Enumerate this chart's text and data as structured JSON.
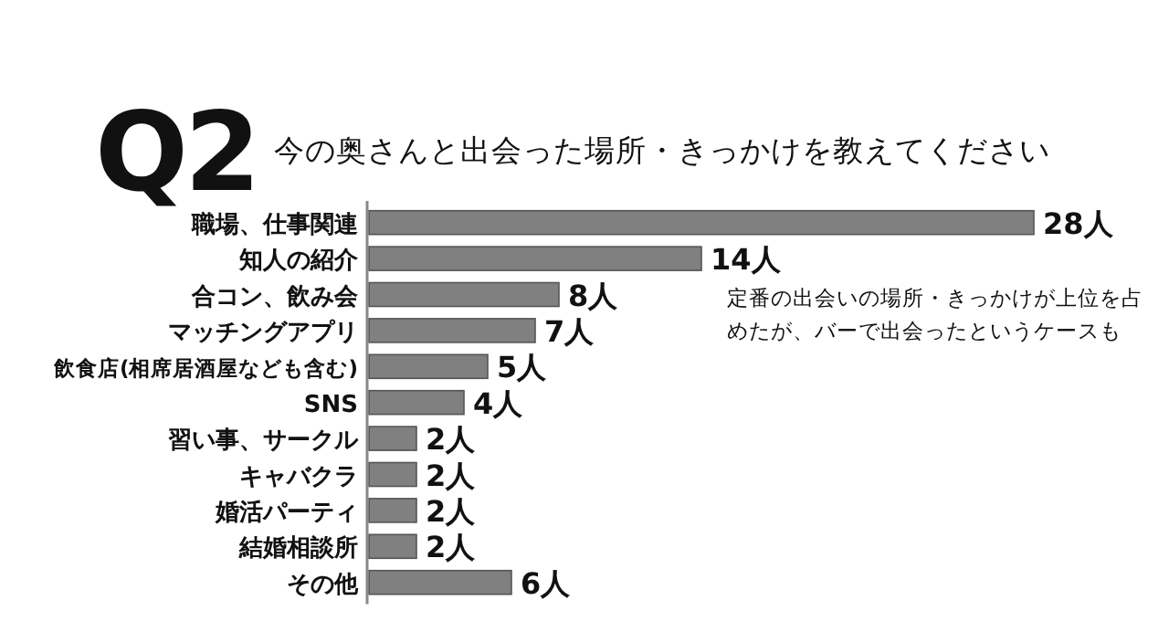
{
  "chart_data": {
    "type": "bar",
    "orientation": "horizontal",
    "title": "Q2",
    "subtitle": "今の奥さんと出会った場所・きっかけを教えてください",
    "categories": [
      "職場、仕事関連",
      "知人の紹介",
      "合コン、飲み会",
      "マッチングアプリ",
      "飲食店(相席居酒屋なども含む)",
      "SNS",
      "習い事、サークル",
      "キャバクラ",
      "婚活パーティ",
      "結婚相談所",
      "その他"
    ],
    "values": [
      28,
      14,
      8,
      7,
      5,
      4,
      2,
      2,
      2,
      2,
      6
    ],
    "value_labels": [
      "28人",
      "14人",
      "8人",
      "7人",
      "5人",
      "4人",
      "2人",
      "2人",
      "2人",
      "2人",
      "6人"
    ],
    "color": "#808080",
    "annotations": [
      "定番の出会いの場所・きっかけが上位を占めたが、バーで出会ったというケースも"
    ]
  }
}
